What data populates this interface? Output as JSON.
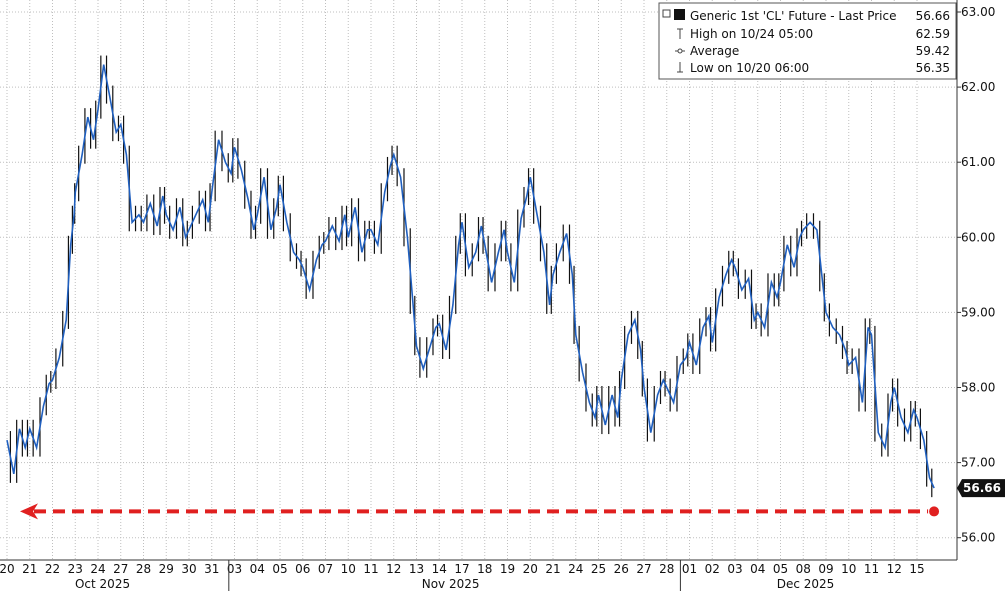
{
  "chart_data": {
    "type": "line",
    "title": "",
    "xlabel": "",
    "ylabel": "",
    "ylim": [
      55.8,
      63.05
    ],
    "y_ticks": [
      "63.00",
      "62.00",
      "61.00",
      "60.00",
      "59.00",
      "58.00",
      "57.00",
      "56.00"
    ],
    "grid": true,
    "legend_position": "top-right",
    "legend": {
      "main": {
        "label": "Generic 1st 'CL' Future - Last Price",
        "value": "56.66"
      },
      "high": {
        "label": "High on 10/24 05:00",
        "value": "62.59"
      },
      "average": {
        "label": "Average",
        "value": "59.42"
      },
      "low": {
        "label": "Low on 10/20 06:00",
        "value": "56.35"
      }
    },
    "last_price_label": "56.66",
    "x_day_labels": [
      "20",
      "21",
      "22",
      "23",
      "24",
      "27",
      "28",
      "29",
      "30",
      "31",
      "03",
      "04",
      "05",
      "06",
      "07",
      "10",
      "11",
      "12",
      "13",
      "14",
      "17",
      "18",
      "19",
      "20",
      "21",
      "24",
      "25",
      "26",
      "27",
      "28",
      "01",
      "02",
      "03",
      "04",
      "05",
      "08",
      "09",
      "10",
      "11",
      "12",
      "15"
    ],
    "month_labels": [
      {
        "label": "Oct 2025",
        "at_day_index": 4.2
      },
      {
        "label": "Nov 2025",
        "at_day_index": 19.5
      },
      {
        "label": "Dec 2025",
        "at_day_index": 35.1
      }
    ],
    "series": [
      {
        "values": [
          [
            0,
            57.3
          ],
          [
            0.3,
            56.85
          ],
          [
            0.55,
            57.45
          ],
          [
            0.8,
            57.2
          ],
          [
            1.0,
            57.45
          ],
          [
            1.3,
            57.2
          ],
          [
            1.6,
            57.75
          ],
          [
            1.85,
            58.05
          ],
          [
            2.0,
            58.1
          ],
          [
            2.3,
            58.4
          ],
          [
            2.6,
            58.9
          ],
          [
            2.8,
            59.9
          ],
          [
            2.95,
            60.3
          ],
          [
            3.0,
            60.6
          ],
          [
            3.3,
            61.1
          ],
          [
            3.55,
            61.6
          ],
          [
            3.8,
            61.3
          ],
          [
            4.0,
            61.7
          ],
          [
            4.25,
            62.3
          ],
          [
            4.5,
            61.9
          ],
          [
            4.8,
            61.4
          ],
          [
            5.0,
            61.5
          ],
          [
            5.25,
            61.1
          ],
          [
            5.5,
            60.2
          ],
          [
            5.8,
            60.3
          ],
          [
            6.0,
            60.2
          ],
          [
            6.3,
            60.45
          ],
          [
            6.6,
            60.15
          ],
          [
            6.85,
            60.55
          ],
          [
            7.0,
            60.3
          ],
          [
            7.3,
            60.1
          ],
          [
            7.6,
            60.4
          ],
          [
            7.85,
            60.0
          ],
          [
            8.0,
            60.1
          ],
          [
            8.3,
            60.3
          ],
          [
            8.6,
            60.5
          ],
          [
            8.85,
            60.2
          ],
          [
            9.0,
            60.6
          ],
          [
            9.3,
            61.3
          ],
          [
            9.6,
            61.0
          ],
          [
            9.85,
            60.85
          ],
          [
            10.0,
            61.2
          ],
          [
            10.3,
            60.9
          ],
          [
            10.6,
            60.5
          ],
          [
            10.85,
            60.1
          ],
          [
            11.0,
            60.3
          ],
          [
            11.3,
            60.8
          ],
          [
            11.6,
            60.1
          ],
          [
            11.85,
            60.4
          ],
          [
            12.0,
            60.7
          ],
          [
            12.3,
            60.2
          ],
          [
            12.6,
            59.8
          ],
          [
            12.85,
            59.7
          ],
          [
            13.0,
            59.6
          ],
          [
            13.3,
            59.3
          ],
          [
            13.6,
            59.7
          ],
          [
            13.85,
            59.9
          ],
          [
            14.0,
            59.95
          ],
          [
            14.3,
            60.15
          ],
          [
            14.6,
            59.95
          ],
          [
            14.85,
            60.3
          ],
          [
            15.0,
            60.0
          ],
          [
            15.3,
            60.4
          ],
          [
            15.6,
            59.8
          ],
          [
            15.85,
            60.1
          ],
          [
            16.0,
            60.1
          ],
          [
            16.3,
            59.9
          ],
          [
            16.6,
            60.6
          ],
          [
            16.85,
            60.95
          ],
          [
            17.0,
            61.1
          ],
          [
            17.3,
            60.8
          ],
          [
            17.6,
            60.0
          ],
          [
            17.85,
            59.1
          ],
          [
            18.0,
            58.55
          ],
          [
            18.3,
            58.25
          ],
          [
            18.6,
            58.55
          ],
          [
            18.85,
            58.8
          ],
          [
            19.0,
            58.85
          ],
          [
            19.3,
            58.5
          ],
          [
            19.6,
            59.1
          ],
          [
            19.85,
            59.9
          ],
          [
            20.0,
            60.2
          ],
          [
            20.3,
            59.6
          ],
          [
            20.6,
            59.8
          ],
          [
            20.85,
            60.15
          ],
          [
            21.0,
            59.9
          ],
          [
            21.3,
            59.4
          ],
          [
            21.6,
            59.8
          ],
          [
            21.85,
            60.1
          ],
          [
            22.0,
            59.8
          ],
          [
            22.3,
            59.4
          ],
          [
            22.6,
            60.25
          ],
          [
            22.85,
            60.55
          ],
          [
            23.0,
            60.8
          ],
          [
            23.3,
            60.3
          ],
          [
            23.6,
            59.8
          ],
          [
            23.85,
            59.1
          ],
          [
            24.0,
            59.5
          ],
          [
            24.3,
            59.8
          ],
          [
            24.6,
            60.05
          ],
          [
            24.85,
            59.5
          ],
          [
            25.0,
            58.7
          ],
          [
            25.3,
            58.2
          ],
          [
            25.6,
            57.8
          ],
          [
            25.85,
            57.6
          ],
          [
            26.0,
            57.9
          ],
          [
            26.3,
            57.5
          ],
          [
            26.6,
            57.9
          ],
          [
            26.85,
            57.6
          ],
          [
            27.0,
            58.1
          ],
          [
            27.3,
            58.7
          ],
          [
            27.6,
            58.9
          ],
          [
            27.85,
            58.5
          ],
          [
            28.0,
            58.0
          ],
          [
            28.3,
            57.4
          ],
          [
            28.6,
            57.9
          ],
          [
            28.85,
            58.1
          ],
          [
            29.0,
            58.0
          ],
          [
            29.3,
            57.8
          ],
          [
            29.6,
            58.3
          ],
          [
            29.85,
            58.4
          ],
          [
            30.0,
            58.6
          ],
          [
            30.3,
            58.3
          ],
          [
            30.6,
            58.8
          ],
          [
            30.85,
            58.95
          ],
          [
            31.0,
            58.6
          ],
          [
            31.3,
            59.2
          ],
          [
            31.6,
            59.5
          ],
          [
            31.85,
            59.7
          ],
          [
            32.0,
            59.6
          ],
          [
            32.3,
            59.3
          ],
          [
            32.6,
            59.45
          ],
          [
            32.85,
            58.9
          ],
          [
            33.0,
            59.0
          ],
          [
            33.3,
            58.8
          ],
          [
            33.6,
            59.4
          ],
          [
            33.85,
            59.2
          ],
          [
            34.0,
            59.4
          ],
          [
            34.3,
            59.9
          ],
          [
            34.6,
            59.6
          ],
          [
            34.85,
            60.0
          ],
          [
            35.0,
            60.1
          ],
          [
            35.3,
            60.2
          ],
          [
            35.6,
            60.1
          ],
          [
            35.85,
            59.4
          ],
          [
            36.0,
            59.0
          ],
          [
            36.3,
            58.8
          ],
          [
            36.6,
            58.7
          ],
          [
            36.85,
            58.5
          ],
          [
            37.0,
            58.3
          ],
          [
            37.3,
            58.4
          ],
          [
            37.6,
            57.8
          ],
          [
            37.85,
            58.8
          ],
          [
            38.0,
            58.7
          ],
          [
            38.3,
            57.4
          ],
          [
            38.6,
            57.2
          ],
          [
            38.85,
            57.8
          ],
          [
            39.0,
            58.0
          ],
          [
            39.3,
            57.6
          ],
          [
            39.6,
            57.4
          ],
          [
            39.85,
            57.7
          ],
          [
            40.0,
            57.6
          ],
          [
            40.3,
            57.3
          ],
          [
            40.55,
            56.8
          ],
          [
            40.75,
            56.66
          ]
        ]
      }
    ],
    "reference_line": {
      "value": 56.35,
      "color": "#e02020"
    },
    "line_color": "#1f5fbf",
    "bar_color": "#111111",
    "grid_color": "#bfbfbf"
  }
}
